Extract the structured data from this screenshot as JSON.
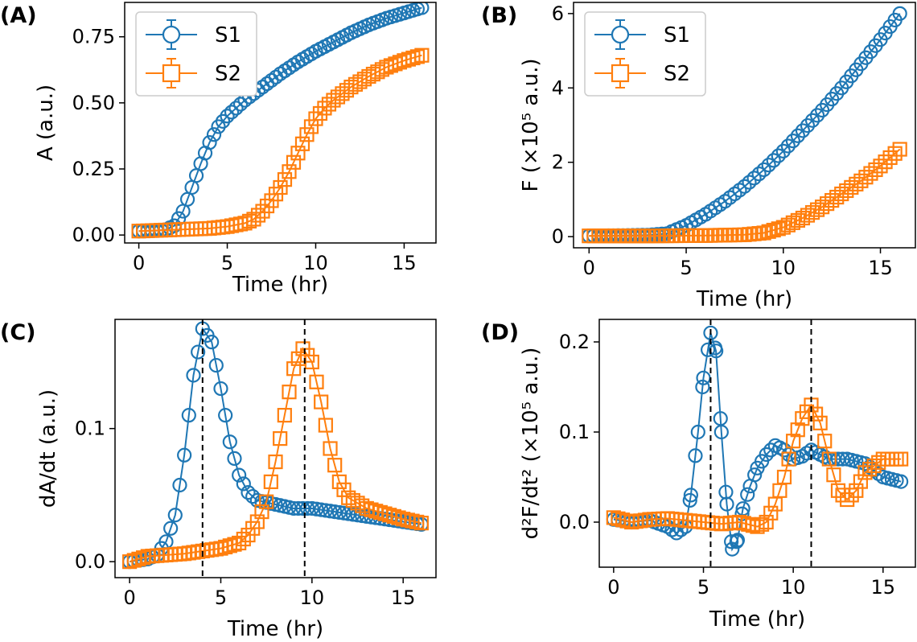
{
  "colors": {
    "S1": "#1f77b4",
    "S2": "#ff7f0e"
  },
  "chart_data": [
    {
      "id": "A",
      "type": "scatter",
      "panel_label": "(A)",
      "xlabel": "Time (hr)",
      "ylabel": "A (a.u.)",
      "xlim": [
        -0.8,
        16.8
      ],
      "ylim": [
        -0.03,
        0.88
      ],
      "xticks": [
        {
          "v": 0,
          "label": "0"
        },
        {
          "v": 5,
          "label": "5"
        },
        {
          "v": 10,
          "label": "10"
        },
        {
          "v": 15,
          "label": "15"
        }
      ],
      "yticks": [
        {
          "v": 0,
          "label": "0.00"
        },
        {
          "v": 0.25,
          "label": "0.25"
        },
        {
          "v": 0.5,
          "label": "0.50"
        },
        {
          "v": 0.75,
          "label": "0.75"
        }
      ],
      "legend": {
        "position": "upper-left",
        "entries": [
          "S1",
          "S2"
        ]
      },
      "vlines": [],
      "series": [
        {
          "name": "S1",
          "marker": "circle",
          "points": [
            [
              0,
              0.015
            ],
            [
              1,
              0.017
            ],
            [
              1.5,
              0.02
            ],
            [
              2,
              0.035
            ],
            [
              2.5,
              0.09
            ],
            [
              3,
              0.18
            ],
            [
              3.5,
              0.27
            ],
            [
              4,
              0.35
            ],
            [
              4.5,
              0.41
            ],
            [
              5,
              0.45
            ],
            [
              6,
              0.51
            ],
            [
              7,
              0.56
            ],
            [
              8,
              0.61
            ],
            [
              9,
              0.655
            ],
            [
              10,
              0.695
            ],
            [
              11,
              0.73
            ],
            [
              12,
              0.765
            ],
            [
              13,
              0.795
            ],
            [
              14,
              0.82
            ],
            [
              15,
              0.84
            ],
            [
              16,
              0.86
            ]
          ]
        },
        {
          "name": "S2",
          "marker": "square",
          "points": [
            [
              0,
              0.015
            ],
            [
              2,
              0.02
            ],
            [
              4,
              0.025
            ],
            [
              5,
              0.032
            ],
            [
              6,
              0.045
            ],
            [
              6.5,
              0.06
            ],
            [
              7,
              0.09
            ],
            [
              7.5,
              0.13
            ],
            [
              8,
              0.18
            ],
            [
              8.5,
              0.24
            ],
            [
              9,
              0.31
            ],
            [
              9.5,
              0.38
            ],
            [
              10,
              0.44
            ],
            [
              10.5,
              0.48
            ],
            [
              11,
              0.51
            ],
            [
              12,
              0.56
            ],
            [
              13,
              0.6
            ],
            [
              14,
              0.635
            ],
            [
              15,
              0.66
            ],
            [
              16,
              0.68
            ]
          ]
        }
      ]
    },
    {
      "id": "B",
      "type": "scatter",
      "panel_label": "(B)",
      "xlabel": "Time (hr)",
      "ylabel": "F (×10⁵ a.u.)",
      "xlim": [
        -0.8,
        16.8
      ],
      "ylim": [
        -0.3,
        6.3
      ],
      "xticks": [
        {
          "v": 0,
          "label": "0"
        },
        {
          "v": 5,
          "label": "5"
        },
        {
          "v": 10,
          "label": "10"
        },
        {
          "v": 15,
          "label": "15"
        }
      ],
      "yticks": [
        {
          "v": 0,
          "label": "0"
        },
        {
          "v": 2,
          "label": "2"
        },
        {
          "v": 4,
          "label": "4"
        },
        {
          "v": 6,
          "label": "6"
        }
      ],
      "legend": {
        "position": "upper-left",
        "entries": [
          "S1",
          "S2"
        ]
      },
      "vlines": [],
      "series": [
        {
          "name": "S1",
          "marker": "circle",
          "points": [
            [
              0,
              0.02
            ],
            [
              2,
              0.03
            ],
            [
              3,
              0.04
            ],
            [
              4,
              0.08
            ],
            [
              5,
              0.3
            ],
            [
              6,
              0.6
            ],
            [
              7,
              0.95
            ],
            [
              8,
              1.35
            ],
            [
              9,
              1.8
            ],
            [
              10,
              2.3
            ],
            [
              11,
              2.85
            ],
            [
              12,
              3.4
            ],
            [
              13,
              4.0
            ],
            [
              14,
              4.65
            ],
            [
              15,
              5.3
            ],
            [
              16,
              6.0
            ]
          ]
        },
        {
          "name": "S2",
          "marker": "square",
          "points": [
            [
              0,
              0.02
            ],
            [
              3,
              0.02
            ],
            [
              6,
              0.03
            ],
            [
              8,
              0.05
            ],
            [
              9,
              0.1
            ],
            [
              10,
              0.25
            ],
            [
              11,
              0.5
            ],
            [
              12,
              0.8
            ],
            [
              13,
              1.15
            ],
            [
              14,
              1.5
            ],
            [
              15,
              1.9
            ],
            [
              16,
              2.35
            ]
          ]
        }
      ]
    },
    {
      "id": "C",
      "type": "scatter",
      "panel_label": "(C)",
      "xlabel": "Time (hr)",
      "ylabel": "dA/dt (a.u.)",
      "xlim": [
        -0.8,
        16.8
      ],
      "ylim": [
        -0.012,
        0.182
      ],
      "xticks": [
        {
          "v": 0,
          "label": "0"
        },
        {
          "v": 5,
          "label": "5"
        },
        {
          "v": 10,
          "label": "10"
        },
        {
          "v": 15,
          "label": "15"
        }
      ],
      "yticks": [
        {
          "v": 0,
          "label": "0.0"
        },
        {
          "v": 0.1,
          "label": "0.1"
        }
      ],
      "legend": null,
      "vlines": [
        4.0,
        9.6
      ],
      "series": [
        {
          "name": "S1",
          "marker": "circle",
          "points": [
            [
              0,
              0.0
            ],
            [
              1,
              0.002
            ],
            [
              1.5,
              0.005
            ],
            [
              2,
              0.015
            ],
            [
              2.5,
              0.035
            ],
            [
              3,
              0.08
            ],
            [
              3.5,
              0.14
            ],
            [
              4,
              0.175
            ],
            [
              4.5,
              0.165
            ],
            [
              5,
              0.13
            ],
            [
              5.5,
              0.09
            ],
            [
              6,
              0.065
            ],
            [
              6.5,
              0.052
            ],
            [
              7,
              0.046
            ],
            [
              8,
              0.043
            ],
            [
              9,
              0.04
            ],
            [
              10,
              0.04
            ],
            [
              11,
              0.038
            ],
            [
              12,
              0.036
            ],
            [
              13,
              0.034
            ],
            [
              14,
              0.032
            ],
            [
              15,
              0.03
            ],
            [
              16,
              0.028
            ]
          ]
        },
        {
          "name": "S2",
          "marker": "square",
          "points": [
            [
              0,
              0.0
            ],
            [
              1,
              0.004
            ],
            [
              2,
              0.005
            ],
            [
              3,
              0.006
            ],
            [
              4,
              0.008
            ],
            [
              5,
              0.01
            ],
            [
              6,
              0.014
            ],
            [
              6.5,
              0.02
            ],
            [
              7,
              0.03
            ],
            [
              7.5,
              0.045
            ],
            [
              8,
              0.075
            ],
            [
              8.5,
              0.11
            ],
            [
              9,
              0.145
            ],
            [
              9.5,
              0.16
            ],
            [
              10,
              0.15
            ],
            [
              10.5,
              0.12
            ],
            [
              11,
              0.085
            ],
            [
              11.5,
              0.06
            ],
            [
              12,
              0.048
            ],
            [
              13,
              0.04
            ],
            [
              14,
              0.036
            ],
            [
              15,
              0.032
            ],
            [
              16,
              0.029
            ]
          ]
        }
      ]
    },
    {
      "id": "D",
      "type": "scatter",
      "panel_label": "(D)",
      "xlabel": "Time (hr)",
      "ylabel": "d²F/dt² (×10⁵ a.u.)",
      "xlim": [
        -0.8,
        16.8
      ],
      "ylim": [
        -0.05,
        0.225
      ],
      "xticks": [
        {
          "v": 0,
          "label": "0"
        },
        {
          "v": 5,
          "label": "5"
        },
        {
          "v": 10,
          "label": "10"
        },
        {
          "v": 15,
          "label": "15"
        }
      ],
      "yticks": [
        {
          "v": 0,
          "label": "0.0"
        },
        {
          "v": 0.1,
          "label": "0.1"
        },
        {
          "v": 0.2,
          "label": "0.2"
        }
      ],
      "legend": null,
      "vlines": [
        5.4,
        11.0
      ],
      "series": [
        {
          "name": "S1",
          "marker": "circle",
          "points": [
            [
              0,
              0.003
            ],
            [
              1,
              0.0
            ],
            [
              2,
              0.002
            ],
            [
              3,
              -0.005
            ],
            [
              3.5,
              -0.012
            ],
            [
              4,
              -0.005
            ],
            [
              4.3,
              0.03
            ],
            [
              4.7,
              0.1
            ],
            [
              5,
              0.16
            ],
            [
              5.4,
              0.21
            ],
            [
              5.7,
              0.19
            ],
            [
              6,
              0.1
            ],
            [
              6.3,
              0.02
            ],
            [
              6.6,
              -0.03
            ],
            [
              6.9,
              -0.02
            ],
            [
              7.2,
              0.015
            ],
            [
              7.6,
              0.04
            ],
            [
              8,
              0.06
            ],
            [
              8.5,
              0.075
            ],
            [
              9,
              0.085
            ],
            [
              9.5,
              0.08
            ],
            [
              10,
              0.07
            ],
            [
              10.5,
              0.073
            ],
            [
              11,
              0.08
            ],
            [
              11.5,
              0.075
            ],
            [
              12,
              0.07
            ],
            [
              13,
              0.07
            ],
            [
              14,
              0.065
            ],
            [
              15,
              0.05
            ],
            [
              16,
              0.045
            ]
          ]
        },
        {
          "name": "S2",
          "marker": "square",
          "points": [
            [
              0,
              0.005
            ],
            [
              1,
              0.0
            ],
            [
              2,
              0.003
            ],
            [
              3,
              0.004
            ],
            [
              4,
              0.002
            ],
            [
              5,
              0.0
            ],
            [
              6,
              -0.002
            ],
            [
              7,
              0.0
            ],
            [
              8,
              -0.005
            ],
            [
              8.5,
              0.0
            ],
            [
              9,
              0.02
            ],
            [
              9.5,
              0.05
            ],
            [
              10,
              0.09
            ],
            [
              10.5,
              0.115
            ],
            [
              11,
              0.13
            ],
            [
              11.5,
              0.11
            ],
            [
              12,
              0.07
            ],
            [
              12.5,
              0.035
            ],
            [
              13,
              0.025
            ],
            [
              13.5,
              0.035
            ],
            [
              14,
              0.055
            ],
            [
              15,
              0.07
            ],
            [
              16,
              0.07
            ]
          ]
        }
      ]
    }
  ]
}
